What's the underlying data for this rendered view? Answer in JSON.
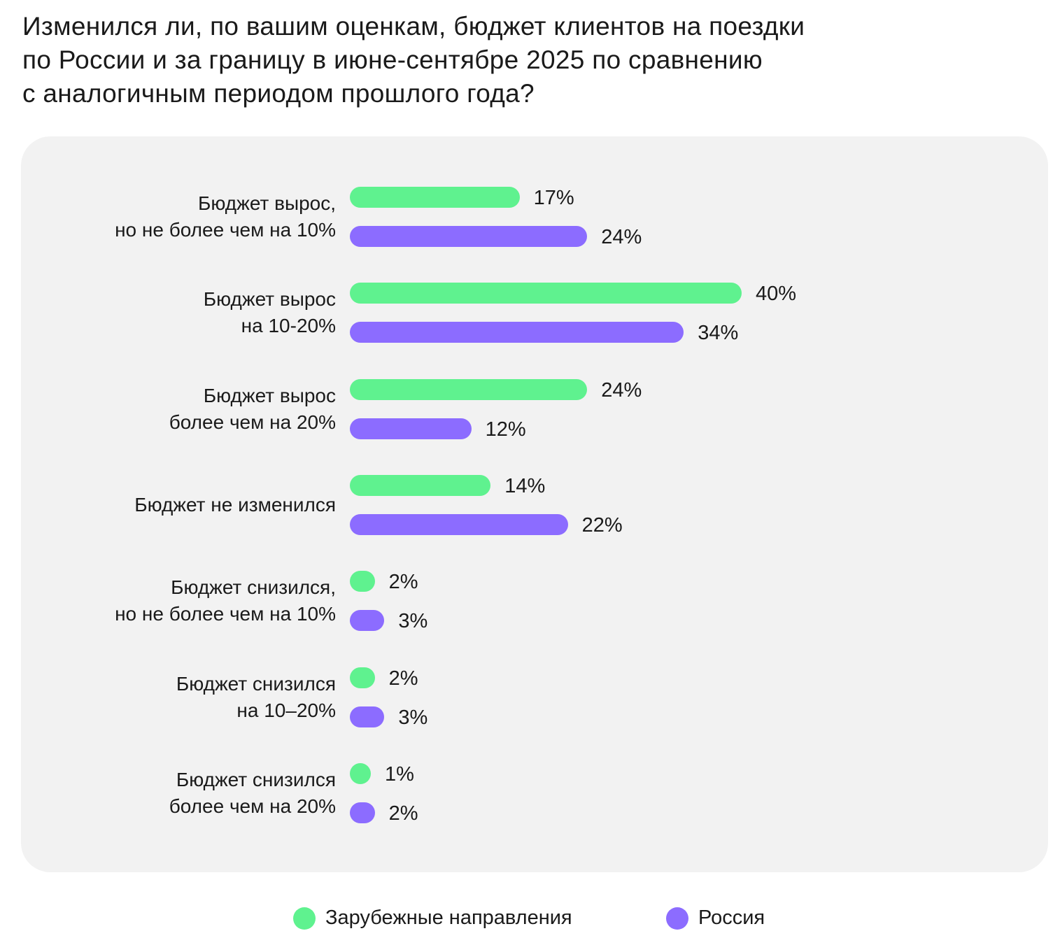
{
  "chart_data": {
    "type": "bar",
    "orientation": "horizontal",
    "title": "Изменился ли, по вашим оценкам, бюджет клиентов на поездки по России и за границу в июне-сентябре 2025 по сравнению с аналогичным периодом прошлого года?",
    "title_lines": [
      "Изменился ли, по вашим оценкам, бюджет клиентов на поездки",
      "по России и за границу в июне-сентябре 2025 по сравнению",
      "с аналогичным периодом прошлого года?"
    ],
    "categories": [
      [
        "Бюджет вырос,",
        "но не более чем на 10%"
      ],
      [
        "Бюджет вырос",
        "на 10-20%"
      ],
      [
        "Бюджет вырос",
        "более чем на 20%"
      ],
      [
        "Бюджет не изменился"
      ],
      [
        "Бюджет снизился,",
        "но не более чем на 10%"
      ],
      [
        "Бюджет снизился",
        "на 10–20%"
      ],
      [
        "Бюджет снизился",
        "более чем на 20%"
      ]
    ],
    "series": [
      {
        "name": "Зарубежные направления",
        "color": "#5ff28f",
        "values": [
          17,
          40,
          24,
          14,
          2,
          2,
          1
        ]
      },
      {
        "name": "Россия",
        "color": "#8c6cff",
        "values": [
          24,
          34,
          12,
          22,
          3,
          3,
          2
        ]
      }
    ],
    "unit": "%",
    "xlim": [
      0,
      40
    ],
    "grid": false,
    "legend_position": "bottom"
  }
}
